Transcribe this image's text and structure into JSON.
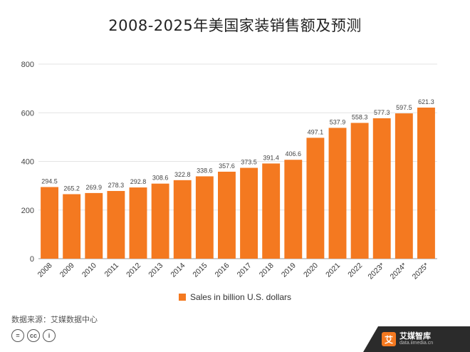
{
  "title": "2008-2025年美国家装销售额及预测",
  "chart_data": {
    "type": "bar",
    "categories": [
      "2008",
      "2009",
      "2010",
      "2011",
      "2012",
      "2013",
      "2014",
      "2015",
      "2016",
      "2017",
      "2018",
      "2019",
      "2020",
      "2021",
      "2022",
      "2023*",
      "2024*",
      "2025*"
    ],
    "series": [
      {
        "name": "Sales in billion U.S. dollars",
        "values": [
          294.5,
          265.2,
          269.9,
          278.3,
          292.8,
          308.6,
          322.8,
          338.6,
          357.6,
          373.5,
          391.4,
          406.6,
          497.1,
          537.9,
          558.3,
          577.3,
          597.5,
          621.3
        ],
        "color": "#f47920"
      }
    ],
    "ylim": [
      0,
      800
    ],
    "yticks": [
      0,
      200,
      400,
      600,
      800
    ],
    "grid": true,
    "legend_position": "bottom"
  },
  "source": "数据来源：艾媒数据中心",
  "cc_icons": [
    "=",
    "cc",
    "i"
  ],
  "brand": {
    "mark": "艾",
    "name": "艾媒智库",
    "url": "data.iimedia.cn"
  }
}
